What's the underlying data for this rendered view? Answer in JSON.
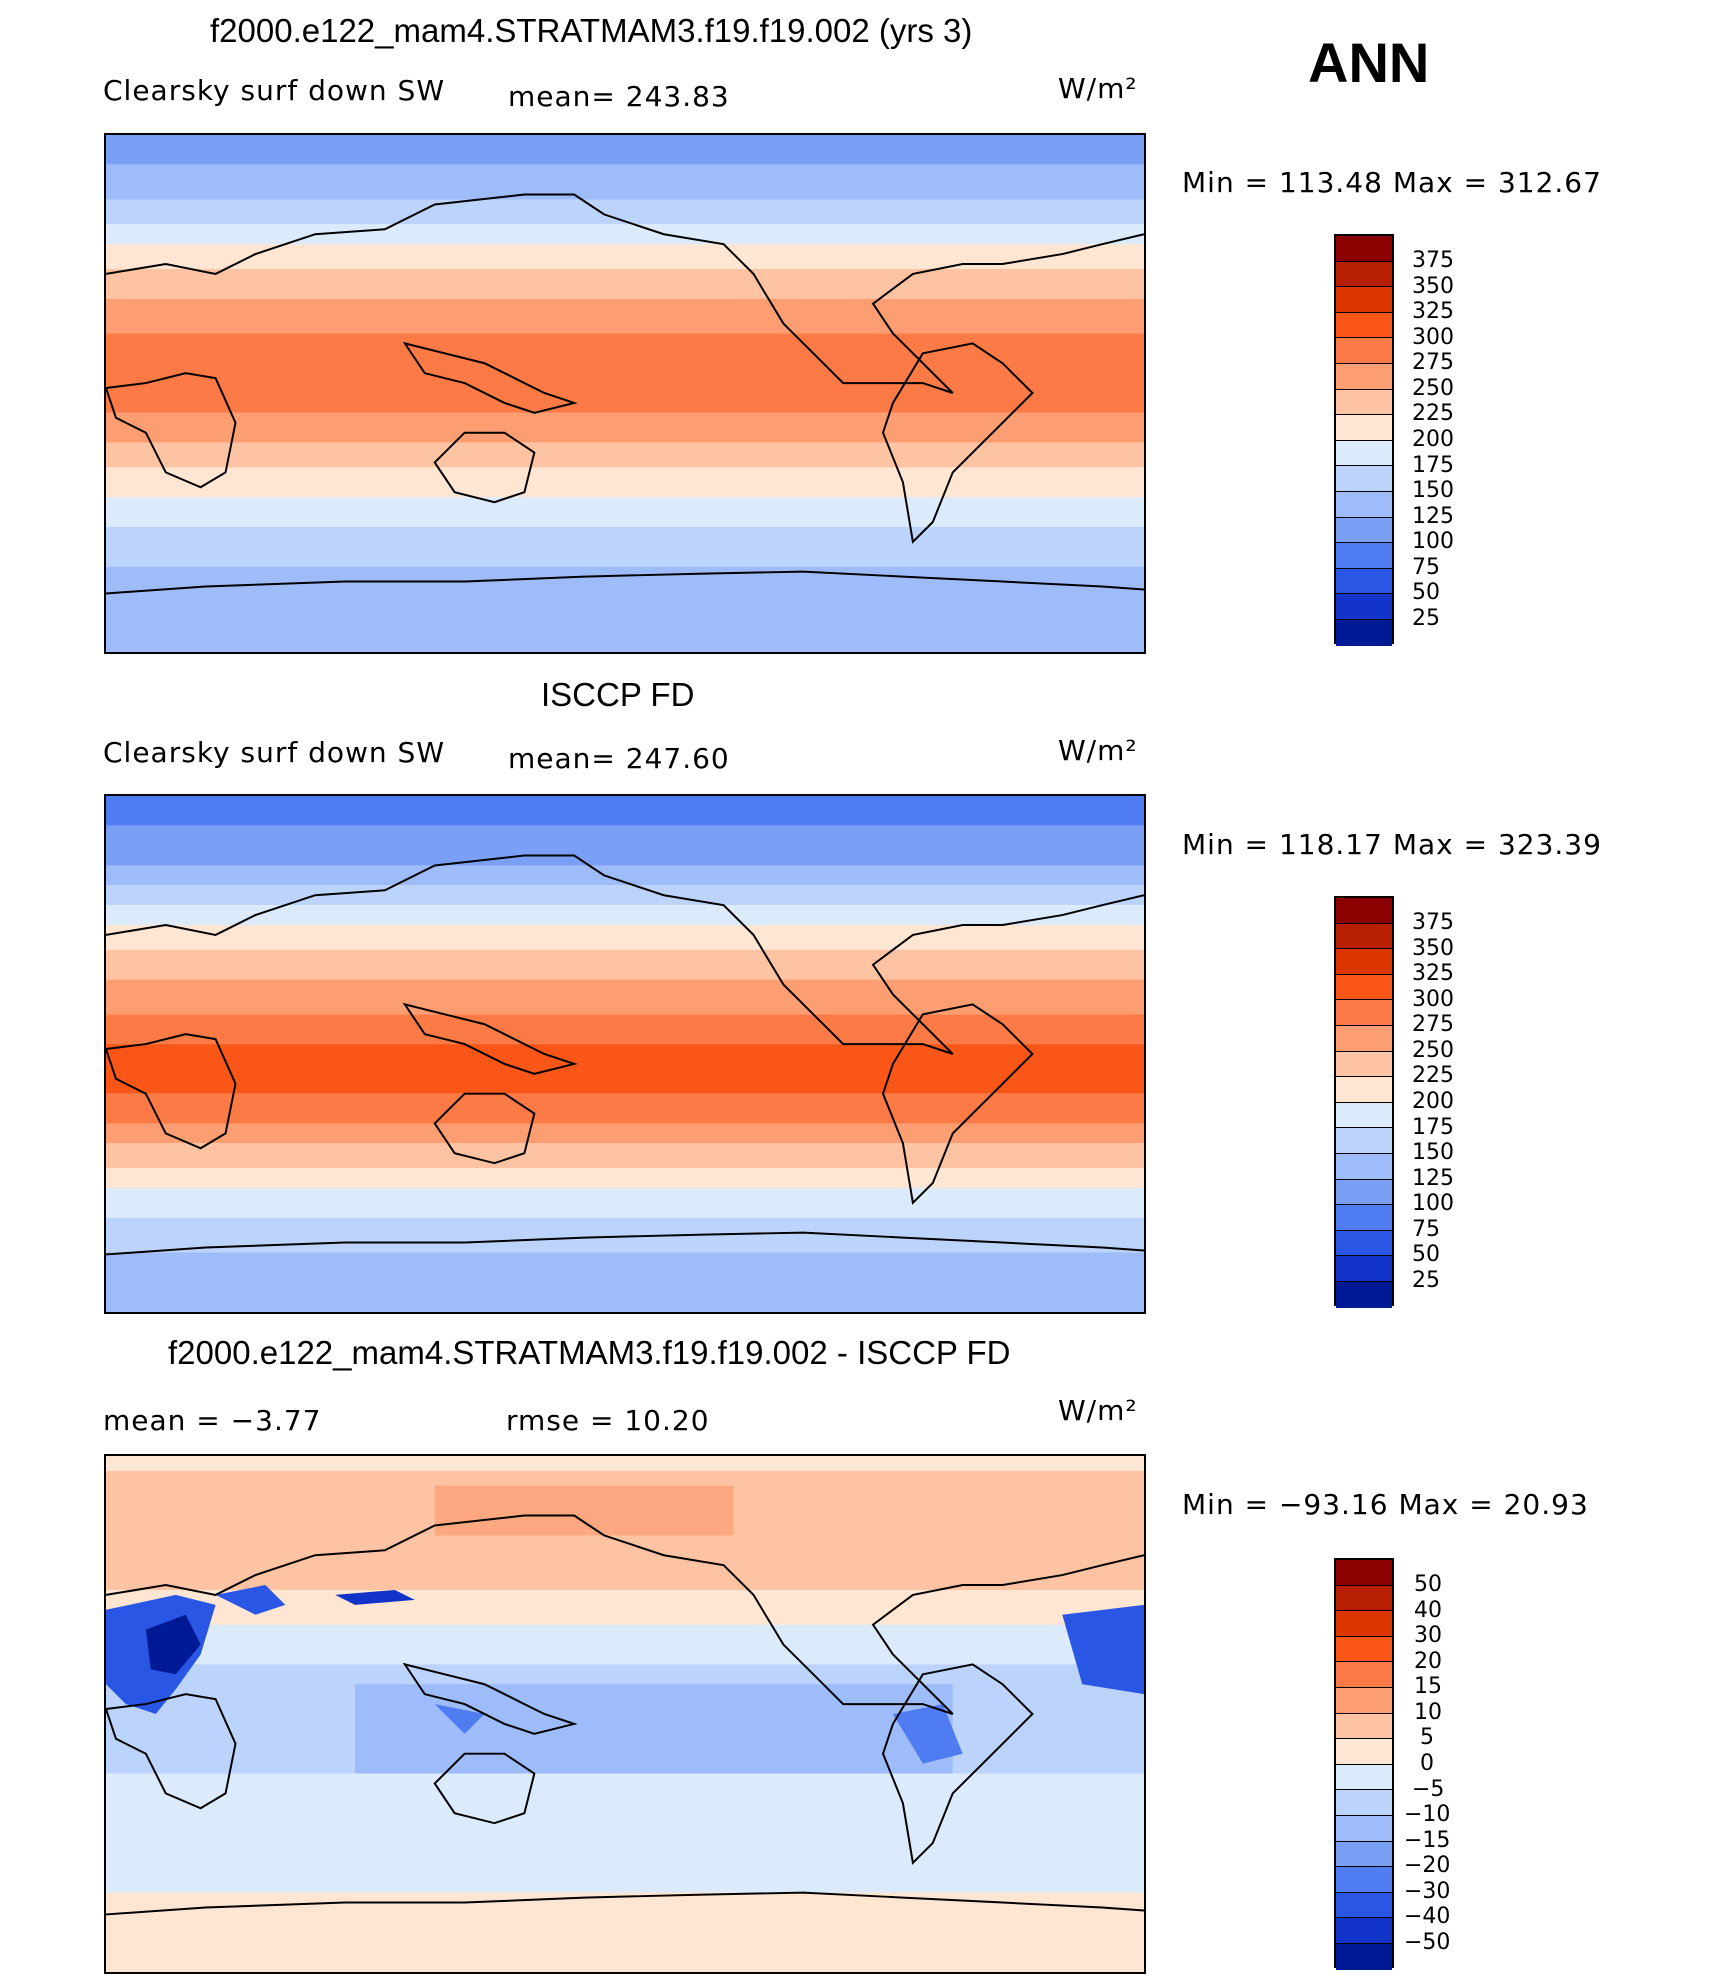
{
  "season": "ANN",
  "panels": [
    {
      "title": "f2000.e122_mam4.STRATMAM3.f19.f19.002 (yrs 3)",
      "left_label": "Clearsky surf down SW",
      "stat_label": "mean= 243.83",
      "units": "W/m²",
      "minmax": "Min  =  113.48  Max  =  312.67"
    },
    {
      "title": "ISCCP FD",
      "left_label": "Clearsky surf down SW",
      "stat_label": "mean= 247.60",
      "units": "W/m²",
      "minmax": "Min  =  118.17  Max  =  323.39"
    },
    {
      "title": "f2000.e122_mam4.STRATMAM3.f19.f19.002 - ISCCP FD",
      "left_label": "mean  =    −3.77",
      "stat_label": "rmse  =    10.20",
      "units": "W/m²",
      "minmax": "Min  =  −93.16  Max  =    20.93"
    }
  ],
  "colorbars": {
    "absolute": {
      "levels": [
        "375",
        "350",
        "325",
        "300",
        "275",
        "250",
        "225",
        "200",
        "175",
        "150",
        "125",
        "100",
        "75",
        "50",
        "25"
      ],
      "colors": [
        "#8b0000",
        "#b81e00",
        "#dc3500",
        "#fa5618",
        "#fb7a45",
        "#fc9d72",
        "#fdc3a3",
        "#fee6d2",
        "#dcebfb",
        "#bcd4fb",
        "#9ebcfa",
        "#7aa0f5",
        "#4f7cf0",
        "#2a56e6",
        "#1233c8",
        "#001a96"
      ]
    },
    "difference": {
      "levels": [
        "50",
        "40",
        "30",
        "20",
        "15",
        "10",
        "5",
        "0",
        "−5",
        "−10",
        "−15",
        "−20",
        "−30",
        "−40",
        "−50"
      ],
      "colors": [
        "#8b0000",
        "#b81e00",
        "#dc3500",
        "#fa5618",
        "#fb7a45",
        "#fc9d72",
        "#fdc3a3",
        "#fee6d2",
        "#dcebfb",
        "#bcd4fb",
        "#9ebcfa",
        "#7aa0f5",
        "#4f7cf0",
        "#2a56e6",
        "#1233c8",
        "#001a96"
      ]
    }
  }
}
